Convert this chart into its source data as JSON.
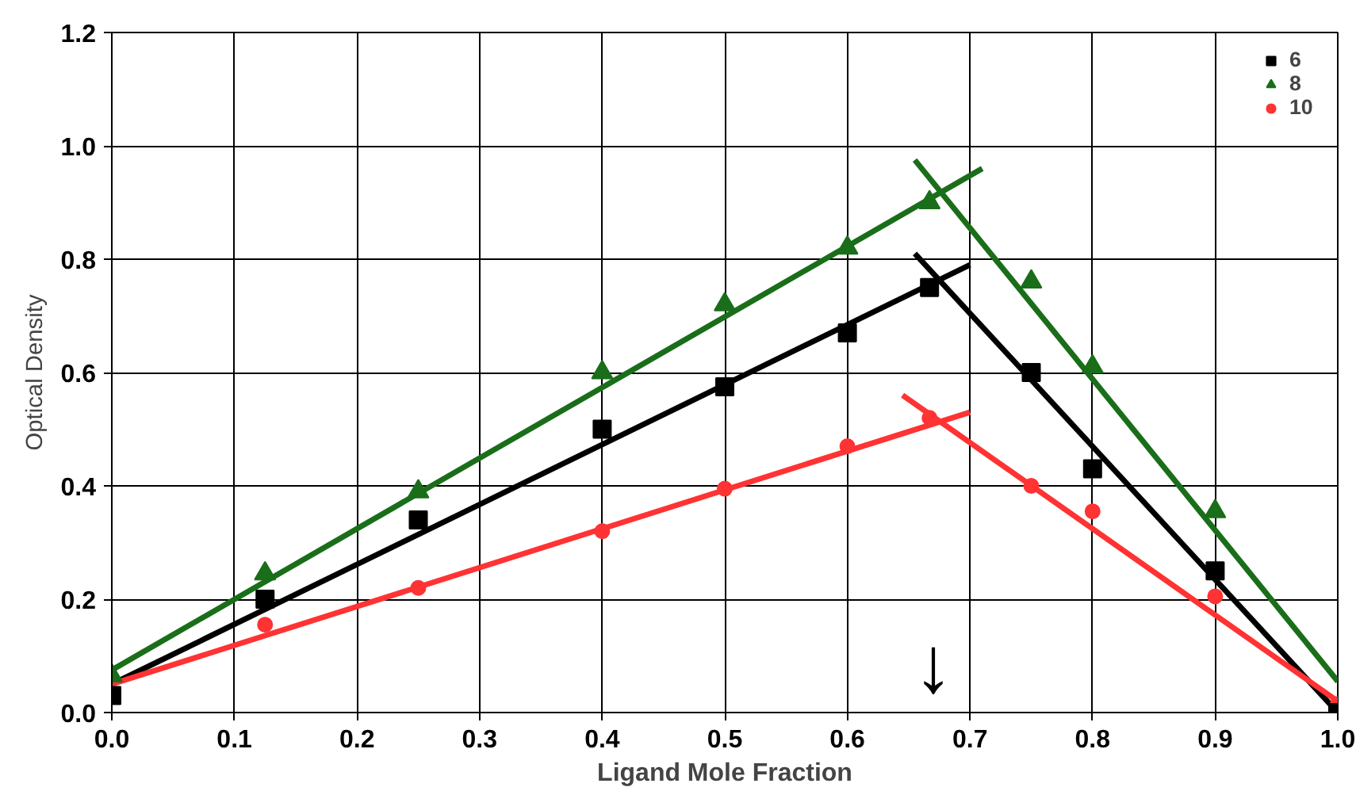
{
  "chart_data": {
    "type": "scatter",
    "xlabel": "Ligand Mole Fraction",
    "ylabel": "Optical Density",
    "xlim": [
      0,
      1
    ],
    "ylim": [
      0,
      1.2
    ],
    "xticks": [
      {
        "value": 0,
        "label": "0.0"
      },
      0.1,
      0.2,
      0.3,
      0.4,
      0.5,
      0.6,
      0.7,
      0.8,
      0.9,
      {
        "value": 1,
        "label": "1.0"
      }
    ],
    "yticks": [
      {
        "value": 0,
        "label": "0.0"
      },
      0.2,
      0.4,
      0.6,
      0.8,
      {
        "value": 1,
        "label": "1.0"
      },
      1.2
    ],
    "grid": true,
    "legend": "top right",
    "series": [
      {
        "name": "6",
        "marker": "square",
        "color": "#000000",
        "x": [
          0,
          0.125,
          0.25,
          0.4,
          0.5,
          0.6,
          0.667,
          0.75,
          0.8,
          0.9,
          1.0
        ],
        "values": [
          0.03,
          0.2,
          0.34,
          0.5,
          0.575,
          0.67,
          0.75,
          0.6,
          0.43,
          0.25,
          0.0
        ]
      },
      {
        "name": "8",
        "marker": "triangle",
        "color": "#1a6e1a",
        "x": [
          0,
          0.125,
          0.25,
          0.4,
          0.5,
          0.6,
          0.667,
          0.75,
          0.8,
          0.9
        ],
        "values": [
          0.065,
          0.245,
          0.39,
          0.6,
          0.72,
          0.82,
          0.9,
          0.76,
          0.61,
          0.355
        ]
      },
      {
        "name": "10",
        "marker": "circle",
        "color": "#ff3333",
        "x": [
          0.125,
          0.25,
          0.4,
          0.5,
          0.6,
          0.667,
          0.75,
          0.8,
          0.9,
          1.0
        ],
        "values": [
          0.155,
          0.22,
          0.32,
          0.395,
          0.47,
          0.52,
          0.4,
          0.355,
          0.205,
          0.015
        ]
      },
      {
        "type": "line",
        "color": "#000000",
        "x": [
          0,
          0.7
        ],
        "values": [
          0.05,
          0.79
        ]
      },
      {
        "type": "line",
        "color": "#000000",
        "x": [
          0.655,
          1.0
        ],
        "values": [
          0.81,
          0.0
        ]
      },
      {
        "type": "line",
        "color": "#1a6e1a",
        "x": [
          0,
          0.71
        ],
        "values": [
          0.075,
          0.96
        ]
      },
      {
        "type": "line",
        "color": "#1a6e1a",
        "x": [
          0.655,
          1.0
        ],
        "values": [
          0.975,
          0.055
        ]
      },
      {
        "type": "line",
        "color": "#ff3333",
        "x": [
          0,
          0.7
        ],
        "values": [
          0.05,
          0.53
        ]
      },
      {
        "type": "line",
        "color": "#ff3333",
        "x": [
          0.645,
          1.0
        ],
        "values": [
          0.56,
          0.02
        ]
      }
    ],
    "annotations": [
      "↓"
    ]
  }
}
